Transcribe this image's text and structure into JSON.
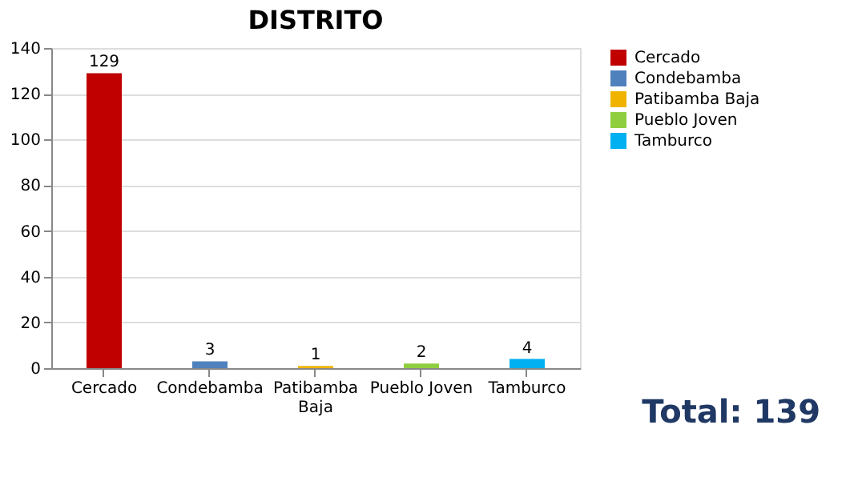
{
  "chart_data": {
    "type": "bar",
    "title": "DISTRITO",
    "categories": [
      "Cercado",
      "Condebamba",
      "Patibamba Baja",
      "Pueblo Joven",
      "Tamburco"
    ],
    "series": [
      {
        "name": "Cercado",
        "color": "#c00000",
        "values": [
          129,
          null,
          null,
          null,
          null
        ]
      },
      {
        "name": "Condebamba",
        "color": "#4f81bd",
        "values": [
          null,
          3,
          null,
          null,
          null
        ]
      },
      {
        "name": "Patibamba Baja",
        "color": "#f0b400",
        "values": [
          null,
          null,
          1,
          null,
          null
        ]
      },
      {
        "name": "Pueblo Joven",
        "color": "#8fce3f",
        "values": [
          null,
          null,
          null,
          2,
          null
        ]
      },
      {
        "name": "Tamburco",
        "color": "#00b0f0",
        "values": [
          null,
          null,
          null,
          null,
          4
        ]
      }
    ],
    "ylim": [
      0,
      140
    ],
    "yticks": [
      0,
      20,
      40,
      60,
      80,
      100,
      120,
      140
    ],
    "grid": "y",
    "legend": "right",
    "data_labels": true,
    "annotations": [
      "Total: 139"
    ]
  }
}
